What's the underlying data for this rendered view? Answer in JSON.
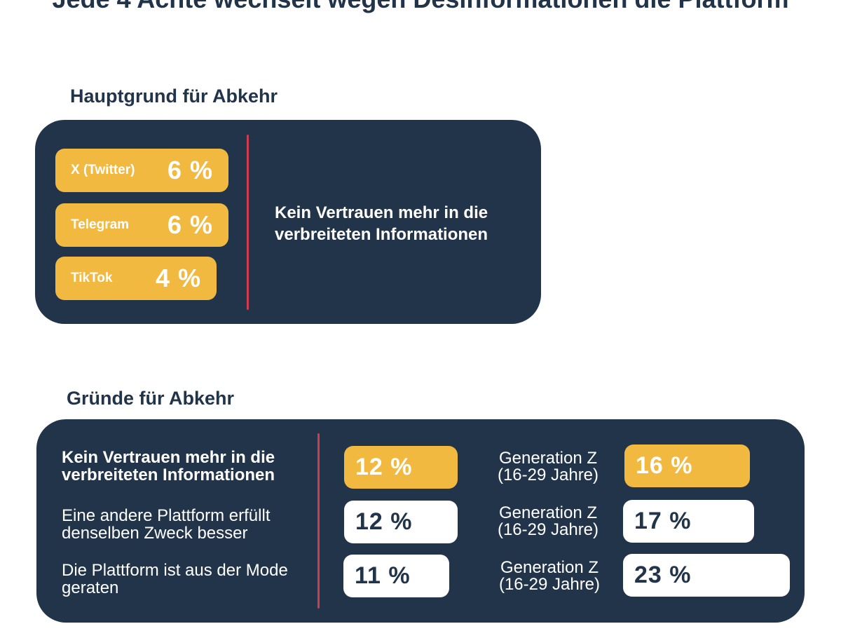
{
  "title": "Jede 4 Achte wechselt wegen Desinformationen die Plattform",
  "chart_data": [
    {
      "type": "bar",
      "title": "Hauptgrund für Abkehr",
      "categories": [
        "X (Twitter)",
        "Telegram",
        "TikTok"
      ],
      "values": [
        6,
        6,
        4
      ],
      "value_labels": [
        "6 %",
        "6 %",
        "4 %"
      ],
      "annotation": "Kein Vertrauen mehr in die verbreiteten Informationen",
      "color": "#f2b941"
    },
    {
      "type": "bar",
      "title": "Gründe für Abkehr",
      "categories": [
        "Kein Vertrauen mehr in die verbreiteten Informationen",
        "Eine andere Plattform erfüllt denselben Zweck besser",
        "Die Plattform ist aus der Mode geraten"
      ],
      "series": [
        {
          "values": [
            12,
            12,
            11
          ],
          "value_labels": [
            "12 %",
            "12 %",
            "11 %"
          ]
        },
        {
          "name": "Generation Z (16-29 Jahre)",
          "values": [
            16,
            17,
            23
          ],
          "value_labels": [
            "16 %",
            "17 %",
            "23 %"
          ]
        }
      ],
      "group_labels": [
        "Generation Z",
        "(16-29 Jahre)"
      ],
      "highlight_color": "#f2b941",
      "panel_color": "#22344a",
      "divider_color": "#d03c4f"
    }
  ]
}
